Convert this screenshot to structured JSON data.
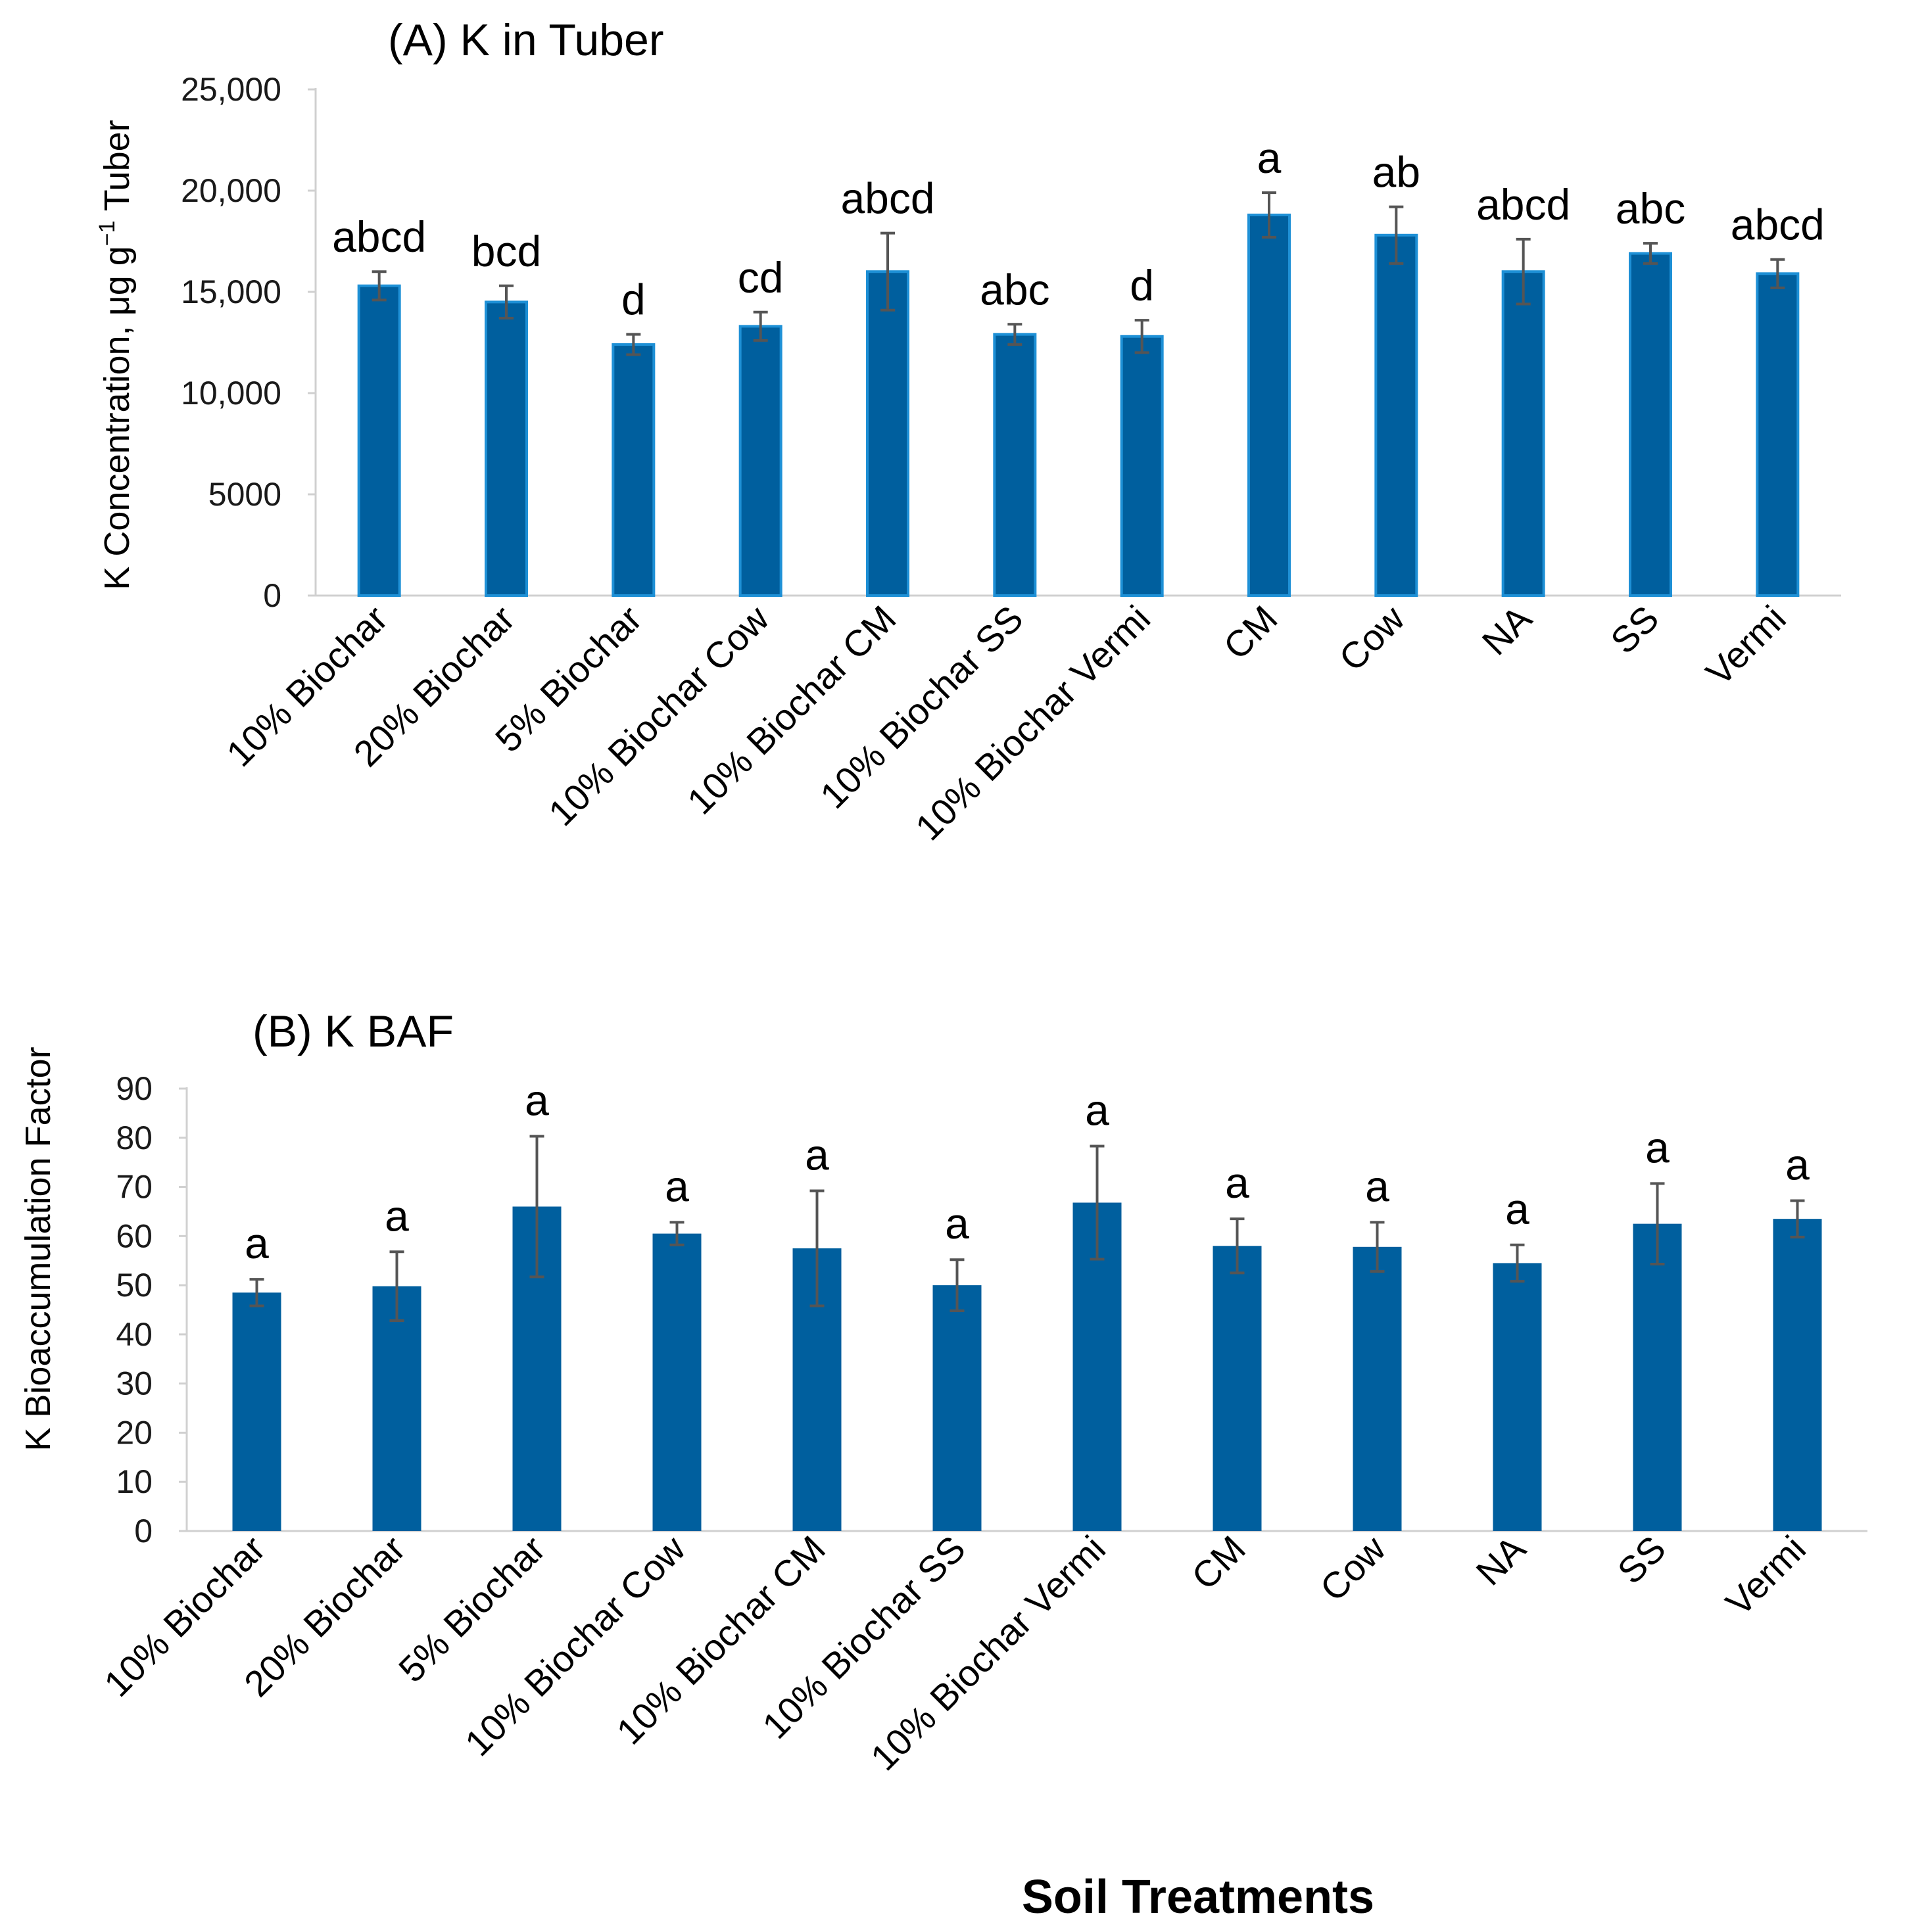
{
  "figure": {
    "xlabel": "Soil Treatments"
  },
  "colors": {
    "bar_fill": "#005F9E",
    "bar_edge_a": "#1E90D6",
    "error_bar": "#555555",
    "axis": "#d0d0d0"
  },
  "chart_data": [
    {
      "id": "A",
      "type": "bar",
      "title": "(A) K in Tuber",
      "ylabel": "K Concentration, μg g",
      "ylabel_sup": "−1",
      "ylabel_tail": " Tuber",
      "ylim": [
        0,
        25000
      ],
      "yticks": [
        0,
        5000,
        10000,
        15000,
        20000,
        25000
      ],
      "ytick_labels": [
        "0",
        "5000",
        "10,000",
        "15,000",
        "20,000",
        "25,000"
      ],
      "categories": [
        "10% Biochar",
        "20% Biochar",
        "5% Biochar",
        "10% Biochar Cow",
        "10% Biochar CM",
        "10% Biochar SS",
        "10% Biochar Vermi",
        "CM",
        "Cow",
        "NA",
        "SS",
        "Vermi"
      ],
      "values": [
        15300,
        14500,
        12400,
        13300,
        16000,
        12900,
        12800,
        18800,
        17800,
        16000,
        16900,
        15900
      ],
      "errors": [
        700,
        800,
        500,
        700,
        1900,
        500,
        800,
        1100,
        1400,
        1600,
        500,
        700
      ],
      "letters": [
        "abcd",
        "bcd",
        "d",
        "cd",
        "abcd",
        "abc",
        "d",
        "a",
        "ab",
        "abcd",
        "abc",
        "abcd"
      ]
    },
    {
      "id": "B",
      "type": "bar",
      "title": "(B) K BAF",
      "ylabel": "K Bioaccumulation Factor",
      "ylim": [
        0,
        90
      ],
      "yticks": [
        0,
        10,
        20,
        30,
        40,
        50,
        60,
        70,
        80,
        90
      ],
      "ytick_labels": [
        "0",
        "10",
        "20",
        "30",
        "40",
        "50",
        "60",
        "70",
        "80",
        "90"
      ],
      "categories": [
        "10% Biochar",
        "20% Biochar",
        "5% Biochar",
        "10% Biochar Cow",
        "10% Biochar CM",
        "10% Biochar SS",
        "10% Biochar Vermi",
        "CM",
        "Cow",
        "NA",
        "SS",
        "Vermi"
      ],
      "values": [
        48.5,
        49.8,
        66.0,
        60.5,
        57.5,
        50.0,
        66.8,
        58.0,
        57.8,
        54.5,
        62.5,
        63.5
      ],
      "errors": [
        2.7,
        7.0,
        14.3,
        2.3,
        11.7,
        5.2,
        11.5,
        5.5,
        5.0,
        3.7,
        8.2,
        3.7
      ],
      "letters": [
        "a",
        "a",
        "a",
        "a",
        "a",
        "a",
        "a",
        "a",
        "a",
        "a",
        "a",
        "a"
      ]
    }
  ]
}
